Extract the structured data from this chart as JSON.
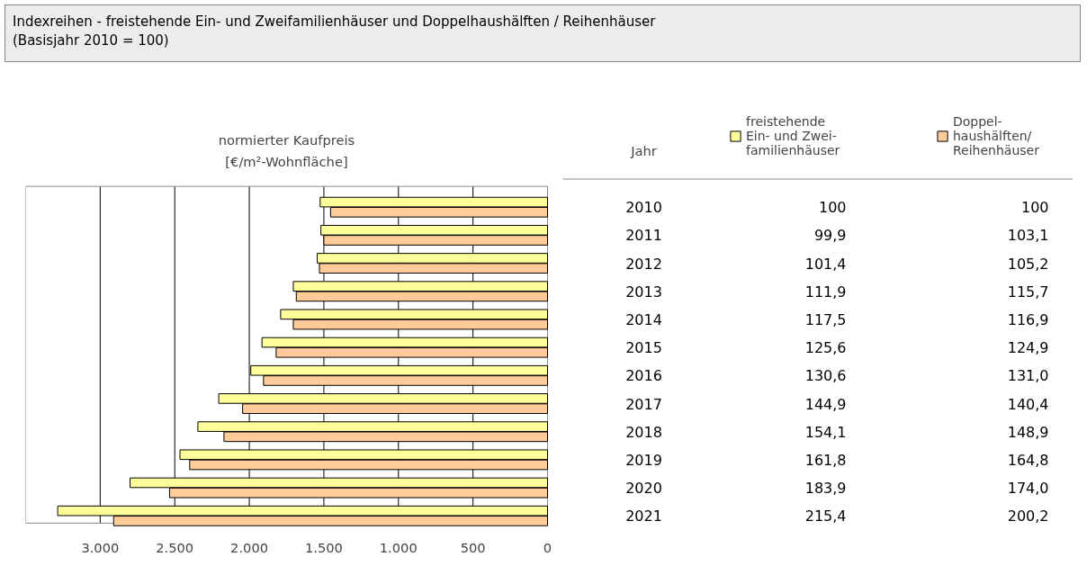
{
  "chart_data": {
    "type": "bar",
    "orientation": "horizontal",
    "title": "Indexreihen - freistehende Ein- und Zweifamilienhäuser und Doppelhaushälften / Reihenhäuser\n(Basisjahr 2010 = 100)",
    "xlabel": "normierter Kaufpreis\n[€/m²-Wohnfläche]",
    "ylabel": "Jahr",
    "categories": [
      "2010",
      "2011",
      "2012",
      "2013",
      "2014",
      "2015",
      "2016",
      "2017",
      "2018",
      "2019",
      "2020",
      "2021"
    ],
    "series": [
      {
        "name": "freistehende\nEin- und Zwei-\nfamilienhäuser",
        "color": "#ffff99",
        "values": [
          1525,
          1520,
          1545,
          1705,
          1790,
          1915,
          1990,
          2205,
          2345,
          2465,
          2800,
          3285
        ]
      },
      {
        "name": "Doppel-\nhaushälften/\nReihenhäuser",
        "color": "#ffcc99",
        "values": [
          1455,
          1500,
          1530,
          1685,
          1705,
          1820,
          1905,
          2045,
          2170,
          2400,
          2535,
          2910
        ]
      }
    ],
    "annotations": [
      "100",
      "100",
      "99,9",
      "103,1",
      "101,4",
      "105,2",
      "111,9",
      "115,7",
      "117,5",
      "116,9",
      "125,6",
      "124,9",
      "130,6",
      "131,0",
      "144,9",
      "140,4",
      "154,1",
      "148,9",
      "161,8",
      "164,8",
      "183,9",
      "174,0",
      "215,4",
      "200,2"
    ],
    "xlim": [
      3500,
      0
    ],
    "xticks": [
      {
        "value": 3000,
        "label": "3.000"
      },
      {
        "value": 2500,
        "label": "2.500"
      },
      {
        "value": 2000,
        "label": "2.000"
      },
      {
        "value": 1500,
        "label": "1.500"
      },
      {
        "value": 1000,
        "label": "1.000"
      },
      500,
      0
    ],
    "grid": "x",
    "legend": "top right"
  }
}
